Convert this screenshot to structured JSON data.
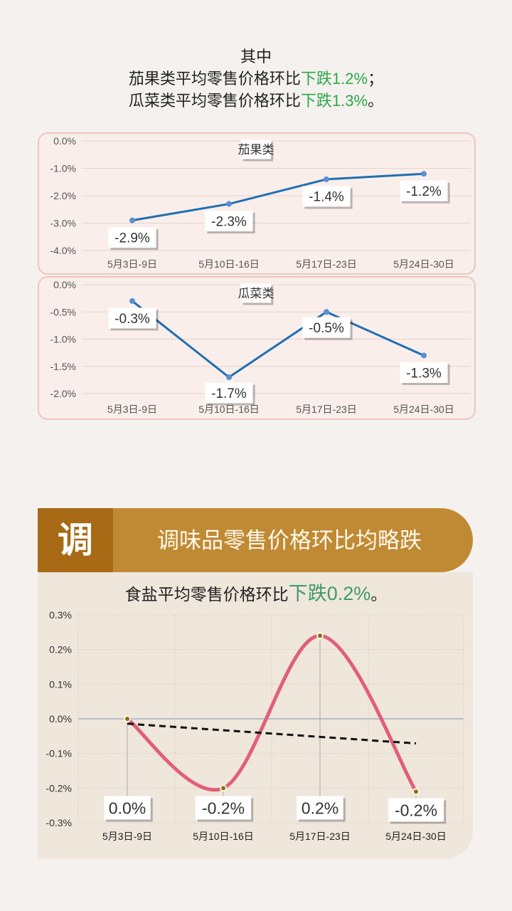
{
  "intro": {
    "line1": "其中",
    "line2_prefix": "茄果类平均零售价格环比",
    "line2_highlight": "下跌1.2%",
    "line2_suffix": "；",
    "line3_prefix": "瓜菜类平均零售价格环比",
    "line3_highlight": "下跌1.3%",
    "line3_suffix": "。"
  },
  "section": {
    "badge_char": "调",
    "title": "调味品零售价格环比均略跌",
    "subtitle_prefix": "食盐平均零售价格环比",
    "subtitle_highlight": "下跌0.2%",
    "subtitle_suffix": "。"
  },
  "colors": {
    "highlight_green": "#2aa84a",
    "vegetable_line": "#1f6fb2",
    "salt_line": "#e06078",
    "trend_line": "#111111",
    "banner": "#c08a34",
    "badge": "#a86a14"
  },
  "chart_data": [
    {
      "type": "line",
      "title": "茄果类",
      "categories": [
        "5月3日-9日",
        "5月10日-16日",
        "5月17日-23日",
        "5月24日-30日"
      ],
      "values": [
        -2.9,
        -2.3,
        -1.4,
        -1.2
      ],
      "data_labels": [
        "-2.9%",
        "-2.3%",
        "-1.4%",
        "-1.2%"
      ],
      "yticks": [
        "0.0%",
        "-1.0%",
        "-2.0%",
        "-3.0%",
        "-4.0%"
      ],
      "ylim": [
        -4,
        0
      ],
      "grid": true
    },
    {
      "type": "line",
      "title": "瓜菜类",
      "categories": [
        "5月3日-9日",
        "5月10日-16日",
        "5月17日-23日",
        "5月24日-30日"
      ],
      "values": [
        -0.3,
        -1.7,
        -0.5,
        -1.3
      ],
      "data_labels": [
        "-0.3%",
        "-1.7%",
        "-0.5%",
        "-1.3%"
      ],
      "yticks": [
        "0.0%",
        "-0.5%",
        "-1.0%",
        "-1.5%",
        "-2.0%"
      ],
      "ylim": [
        -2,
        0
      ],
      "grid": true
    },
    {
      "type": "line",
      "smooth": true,
      "categories": [
        "5月3日-9日",
        "5月10日-16日",
        "5月17日-23日",
        "5月24日-30日"
      ],
      "values": [
        0.0,
        -0.2,
        0.24,
        -0.21
      ],
      "data_labels": [
        "0.0%",
        "-0.2%",
        "0.2%",
        "-0.2%"
      ],
      "yticks": [
        "0.3%",
        "0.2%",
        "0.1%",
        "0.0%",
        "-0.1%",
        "-0.2%",
        "-0.3%"
      ],
      "ylim": [
        -0.3,
        0.3
      ],
      "trendline": "linear",
      "grid": true
    }
  ]
}
